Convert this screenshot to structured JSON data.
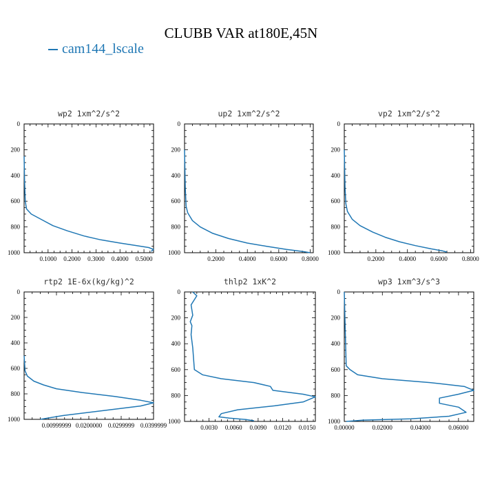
{
  "title": "CLUBB VAR at180E,45N",
  "legend": {
    "label": "cam144_lscale",
    "color": "#1f77b4"
  },
  "chart_data": [
    {
      "type": "line",
      "title": "wp2  1xm^2/s^2",
      "xlim": [
        0,
        0.54
      ],
      "ylim": [
        1000,
        0
      ],
      "xticks": [
        0.1,
        0.2,
        0.3,
        0.4,
        0.5
      ],
      "xtick_labels": [
        "0.1000",
        "0.2000",
        "0.3000",
        "0.4000",
        "0.5000"
      ],
      "yticks": [
        0,
        200,
        400,
        600,
        800,
        1000
      ],
      "ytick_labels": [
        "0",
        "200",
        "400",
        "600",
        "800",
        "1000"
      ],
      "series": [
        {
          "name": "cam144_lscale",
          "x": [
            0.0,
            0.002,
            0.005,
            0.01,
            0.03,
            0.07,
            0.12,
            0.18,
            0.25,
            0.32,
            0.4,
            0.47,
            0.52,
            0.54,
            0.53
          ],
          "y": [
            250,
            450,
            600,
            660,
            700,
            740,
            790,
            830,
            870,
            900,
            925,
            945,
            960,
            975,
            990
          ]
        }
      ]
    },
    {
      "type": "line",
      "title": "up2  1xm^2/s^2",
      "xlim": [
        0,
        0.82
      ],
      "ylim": [
        1000,
        0
      ],
      "xticks": [
        0.2,
        0.4,
        0.6,
        0.8
      ],
      "xtick_labels": [
        "0.2000",
        "0.4000",
        "0.6000",
        "0.8000"
      ],
      "yticks": [
        0,
        200,
        400,
        600,
        800,
        1000
      ],
      "ytick_labels": [
        "0",
        "200",
        "400",
        "600",
        "800",
        "1000"
      ],
      "series": [
        {
          "name": "cam144_lscale",
          "x": [
            0.0,
            0.005,
            0.01,
            0.02,
            0.05,
            0.1,
            0.18,
            0.28,
            0.4,
            0.52,
            0.65,
            0.75,
            0.8
          ],
          "y": [
            200,
            500,
            640,
            690,
            750,
            800,
            850,
            890,
            925,
            950,
            975,
            990,
            1000
          ]
        }
      ]
    },
    {
      "type": "line",
      "title": "vp2  1xm^2/s^2",
      "xlim": [
        0,
        0.82
      ],
      "ylim": [
        1000,
        0
      ],
      "xticks": [
        0.2,
        0.4,
        0.6,
        0.8
      ],
      "xtick_labels": [
        "0.2000",
        "0.4000",
        "0.6000",
        "0.8000"
      ],
      "yticks": [
        0,
        200,
        400,
        600,
        800,
        1000
      ],
      "ytick_labels": [
        "0",
        "200",
        "400",
        "600",
        "800",
        "1000"
      ],
      "series": [
        {
          "name": "cam144_lscale",
          "x": [
            0.0,
            0.005,
            0.01,
            0.02,
            0.05,
            0.1,
            0.18,
            0.26,
            0.35,
            0.45,
            0.55,
            0.62,
            0.65
          ],
          "y": [
            200,
            500,
            620,
            680,
            740,
            790,
            840,
            880,
            915,
            945,
            970,
            985,
            995
          ]
        }
      ]
    },
    {
      "type": "line",
      "title": "rtp2  1E-6x(kg/kg)^2",
      "xlim": [
        0,
        0.04
      ],
      "ylim": [
        1000,
        0
      ],
      "xticks": [
        0.01,
        0.02,
        0.03,
        0.04
      ],
      "xtick_labels": [
        "0.00999999",
        "0.0200000",
        "0.0299999",
        "0.0399999"
      ],
      "yticks": [
        0,
        200,
        400,
        600,
        800,
        1000
      ],
      "ytick_labels": [
        "0",
        "200",
        "400",
        "600",
        "800",
        "1000"
      ],
      "series": [
        {
          "name": "cam144_lscale",
          "x": [
            0.0,
            0.0003,
            0.001,
            0.003,
            0.006,
            0.01,
            0.018,
            0.028,
            0.036,
            0.04,
            0.036,
            0.025,
            0.012,
            0.005
          ],
          "y": [
            500,
            620,
            660,
            700,
            730,
            760,
            790,
            820,
            850,
            870,
            895,
            930,
            970,
            1000
          ]
        }
      ]
    },
    {
      "type": "line",
      "title": "thlp2  1xK^2",
      "xlim": [
        0,
        0.016
      ],
      "ylim": [
        1000,
        0
      ],
      "xticks": [
        0.003,
        0.006,
        0.009,
        0.012,
        0.015
      ],
      "xtick_labels": [
        "0.0030",
        "0.0060",
        "0.0090",
        "0.0120",
        "0.0150"
      ],
      "yticks": [
        0,
        200,
        400,
        600,
        800,
        1000
      ],
      "ytick_labels": [
        "0",
        "200",
        "400",
        "600",
        "800",
        "1000"
      ],
      "series": [
        {
          "name": "cam144_lscale",
          "x": [
            0.001,
            0.0015,
            0.0008,
            0.001,
            0.0007,
            0.0009,
            0.0008,
            0.001,
            0.0012,
            0.0022,
            0.0045,
            0.0085,
            0.0105,
            0.0108,
            0.0145,
            0.016,
            0.0145,
            0.011,
            0.0065,
            0.0045,
            0.0042,
            0.0055,
            0.0075,
            0.0085
          ],
          "y": [
            0,
            30,
            100,
            180,
            230,
            260,
            330,
            430,
            600,
            640,
            670,
            700,
            730,
            760,
            790,
            810,
            850,
            880,
            910,
            940,
            965,
            975,
            985,
            995
          ]
        }
      ]
    },
    {
      "type": "line",
      "title": "wp3  1xm^3/s^3",
      "xlim": [
        0,
        0.068
      ],
      "ylim": [
        1000,
        0
      ],
      "xticks": [
        0,
        0.02,
        0.04,
        0.06
      ],
      "xtick_labels": [
        "0.00000",
        "0.02000",
        "0.04000",
        "0.06000"
      ],
      "yticks": [
        0,
        200,
        400,
        600,
        800,
        1000
      ],
      "ytick_labels": [
        "0",
        "200",
        "400",
        "600",
        "800",
        "1000"
      ],
      "series": [
        {
          "name": "cam144_lscale",
          "x": [
            0.0,
            0.0005,
            0.001,
            0.003,
            0.007,
            0.02,
            0.045,
            0.063,
            0.068,
            0.06,
            0.05,
            0.05,
            0.06,
            0.064,
            0.055,
            0.035,
            0.01,
            0.001
          ],
          "y": [
            0,
            300,
            570,
            600,
            640,
            670,
            700,
            730,
            760,
            790,
            820,
            860,
            890,
            930,
            960,
            980,
            990,
            1000
          ]
        }
      ]
    }
  ]
}
